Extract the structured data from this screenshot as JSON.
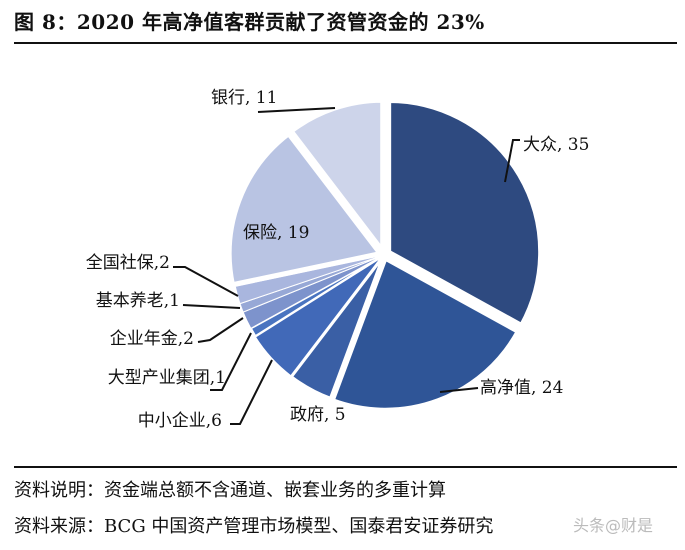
{
  "header": {
    "title": "图 8：2020 年高净值客群贡献了资管资金的 23%"
  },
  "footer": {
    "note": "资料说明：资金端总额不含通道、嵌套业务的多重计算",
    "source": "资料来源：BCG 中国资产管理市场模型、国泰君安证券研究",
    "watermark": "头条@财是"
  },
  "chart_data": {
    "type": "pie",
    "title": "2020 年高净值客群贡献了资管资金的 23%",
    "start_angle": "12 o'clock",
    "direction": "clockwise",
    "categories": [
      "大众",
      "高净值",
      "政府",
      "中小企业",
      "大型产业集团",
      "企业年金",
      "基本养老",
      "全国社保",
      "保险",
      "银行"
    ],
    "values": [
      35,
      24,
      5,
      6,
      1,
      2,
      1,
      2,
      19,
      11
    ],
    "labels": [
      "大众, 35",
      "高净值, 24",
      "政府, 5",
      "中小企业,6",
      "大型产业集团,1",
      "企业年金,2",
      "基本养老,1",
      "全国社保,2",
      "保险, 19",
      "银行, 11"
    ],
    "colors": [
      "#2e4a80",
      "#2f5597",
      "#3a5fa5",
      "#4169b8",
      "#4a74c0",
      "#7d93cc",
      "#97a8d6",
      "#a9b6de",
      "#b9c4e3",
      "#cdd4ea"
    ],
    "legend": "none (data labels with leader lines)"
  }
}
